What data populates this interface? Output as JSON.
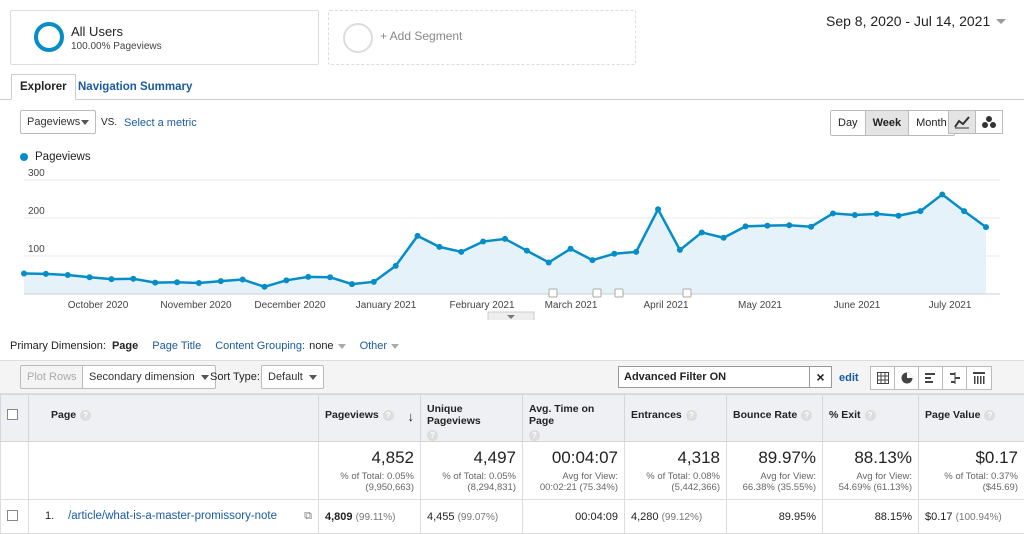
{
  "segments": {
    "all_users_title": "All Users",
    "all_users_sub": "100.00% Pageviews",
    "add_segment": "+ Add Segment"
  },
  "date_range": "Sep 8, 2020 - Jul 14, 2021",
  "tabs": {
    "explorer": "Explorer",
    "navigation_summary": "Navigation Summary"
  },
  "controls": {
    "metric_select": "Pageviews",
    "vs": "VS.",
    "select_metric": "Select a metric",
    "periods": [
      "Day",
      "Week",
      "Month"
    ],
    "selected_period": "Week"
  },
  "colors": {
    "series": "#058dc7",
    "fill": "#e6f2fa",
    "link": "#1a5aa3"
  },
  "chart_data": {
    "type": "area",
    "series": [
      {
        "name": "Pageviews",
        "values": [
          54,
          53,
          50,
          44,
          39,
          40,
          30,
          31,
          29,
          34,
          38,
          19,
          36,
          45,
          44,
          26,
          32,
          74,
          153,
          124,
          111,
          138,
          145,
          114,
          83,
          119,
          89,
          106,
          111,
          223,
          116,
          162,
          148,
          178,
          180,
          181,
          177,
          212,
          208,
          211,
          206,
          218,
          262,
          218,
          176
        ]
      }
    ],
    "x_tick_labels": [
      "October 2020",
      "November 2020",
      "December 2020",
      "January 2021",
      "February 2021",
      "March 2021",
      "April 2021",
      "May 2021",
      "June 2021",
      "July 2021"
    ],
    "y_tick_labels": [
      "100",
      "200",
      "300"
    ],
    "ylim": [
      0,
      300
    ],
    "grid": true
  },
  "dimension": {
    "label": "Primary Dimension:",
    "active": "Page",
    "options": [
      "Page Title",
      "Content Grouping:",
      "Other"
    ],
    "content_grouping_value": "none"
  },
  "toolbar": {
    "plot_rows": "Plot Rows",
    "secondary_dimension": "Secondary dimension",
    "sort_type_label": "Sort Type:",
    "sort_type_value": "Default",
    "filter": "Advanced Filter ON",
    "edit": "edit"
  },
  "table": {
    "headers": [
      "Page",
      "Pageviews",
      "Unique Pageviews",
      "Avg. Time on Page",
      "Entrances",
      "Bounce Rate",
      "% Exit",
      "Page Value"
    ],
    "totals": [
      {
        "value": "4,852",
        "sub1": "% of Total: 0.05%",
        "sub2": "(9,950,663)"
      },
      {
        "value": "4,497",
        "sub1": "% of Total: 0.05%",
        "sub2": "(8,294,831)"
      },
      {
        "value": "00:04:07",
        "sub1": "Avg for View:",
        "sub2": "00:02:21 (75.34%)"
      },
      {
        "value": "4,318",
        "sub1": "% of Total: 0.08%",
        "sub2": "(5,442,366)"
      },
      {
        "value": "89.97%",
        "sub1": "Avg for View:",
        "sub2": "66.38% (35.55%)"
      },
      {
        "value": "88.13%",
        "sub1": "Avg for View:",
        "sub2": "54.69% (61.13%)"
      },
      {
        "value": "$0.17",
        "sub1": "% of Total: 0.37%",
        "sub2": "($45.69)"
      }
    ],
    "row": {
      "index": "1.",
      "page": "/article/what-is-a-master-promissory-note",
      "pageviews": "4,809",
      "pageviews_pct": "(99.11%)",
      "unique": "4,455",
      "unique_pct": "(99.07%)",
      "avg_time": "00:04:09",
      "entrances": "4,280",
      "entrances_pct": "(99.12%)",
      "bounce": "89.95%",
      "exit": "88.15%",
      "value": "$0.17",
      "value_pct": "(100.94%)"
    }
  }
}
